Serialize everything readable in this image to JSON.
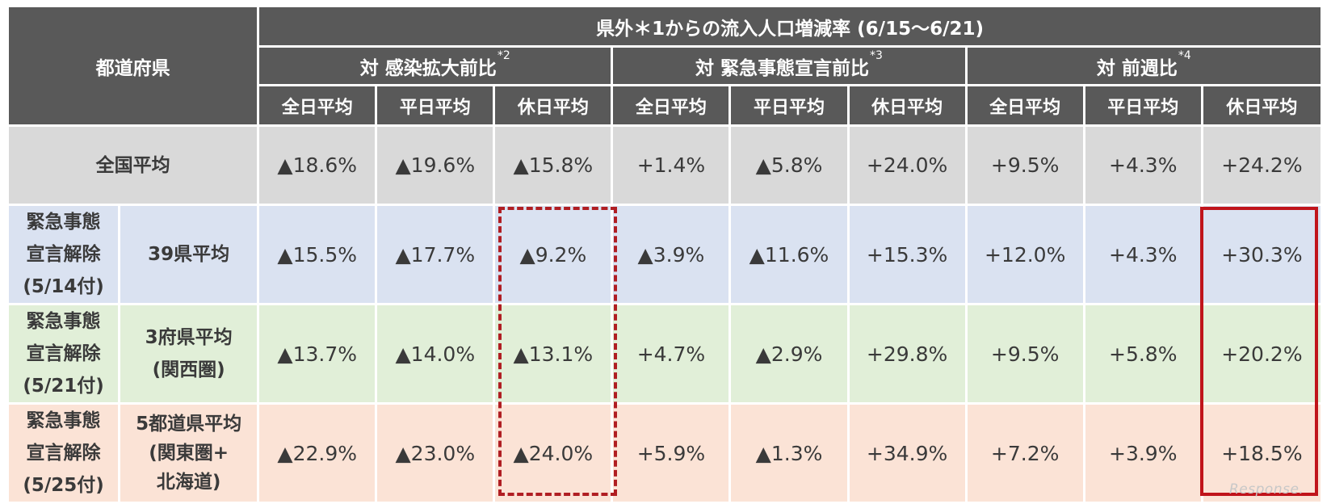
{
  "header": {
    "prefecture": "都道府県",
    "main_title": "県外＊1からの流入人口増減率 (6/15〜6/21)",
    "groups": [
      {
        "label": "対 感染拡大前比",
        "note": "*2"
      },
      {
        "label": "対 緊急事態宣言前比",
        "note": "*3"
      },
      {
        "label": "対 前週比",
        "note": "*4"
      }
    ],
    "subs": [
      "全日平均",
      "平日平均",
      "休日平均"
    ]
  },
  "rows": [
    {
      "label": "全国平均",
      "values": [
        "▲18.6%",
        "▲19.6%",
        "▲15.8%",
        "+1.4%",
        "▲5.8%",
        "+24.0%",
        "+9.5%",
        "+4.3%",
        "+24.2%"
      ]
    },
    {
      "group": [
        "緊急事態",
        "宣言解除",
        "(5/14付)"
      ],
      "label": [
        "39県平均"
      ],
      "values": [
        "▲15.5%",
        "▲17.7%",
        "▲9.2%",
        "▲3.9%",
        "▲11.6%",
        "+15.3%",
        "+12.0%",
        "+4.3%",
        "+30.3%"
      ]
    },
    {
      "group": [
        "緊急事態",
        "宣言解除",
        "(5/21付)"
      ],
      "label": [
        "3府県平均",
        "(関西圏)"
      ],
      "values": [
        "▲13.7%",
        "▲14.0%",
        "▲13.1%",
        "+4.7%",
        "▲2.9%",
        "+29.8%",
        "+9.5%",
        "+5.8%",
        "+20.2%"
      ]
    },
    {
      "group": [
        "緊急事態",
        "宣言解除",
        "(5/25付)"
      ],
      "label": [
        "5都道県平均",
        "(関東圏+",
        "北海道)"
      ],
      "values": [
        "▲22.9%",
        "▲23.0%",
        "▲24.0%",
        "+5.9%",
        "▲1.3%",
        "+34.9%",
        "+7.2%",
        "+3.9%",
        "+18.5%"
      ]
    }
  ],
  "watermark": "Response."
}
